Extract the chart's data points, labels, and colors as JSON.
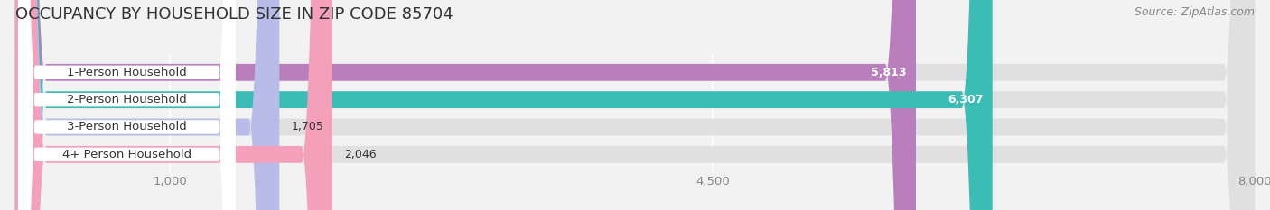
{
  "title": "OCCUPANCY BY HOUSEHOLD SIZE IN ZIP CODE 85704",
  "source": "Source: ZipAtlas.com",
  "categories": [
    "1-Person Household",
    "2-Person Household",
    "3-Person Household",
    "4+ Person Household"
  ],
  "values": [
    5813,
    6307,
    1705,
    2046
  ],
  "bar_colors": [
    "#b87fbc",
    "#3bbcb5",
    "#b8bce8",
    "#f5a0ba"
  ],
  "bar_label_colors": [
    "white",
    "white",
    "black",
    "black"
  ],
  "xlim": [
    0,
    8000
  ],
  "xticks": [
    1000,
    4500,
    8000
  ],
  "title_fontsize": 13,
  "source_fontsize": 9,
  "label_fontsize": 9.5,
  "value_fontsize": 9,
  "bar_height": 0.62,
  "background_color": "#f2f2f2",
  "bar_bg_color": "#e0e0e0",
  "label_bg_color": "#ffffff",
  "grid_color": "#ffffff",
  "text_color": "#333333",
  "tick_color": "#888888"
}
